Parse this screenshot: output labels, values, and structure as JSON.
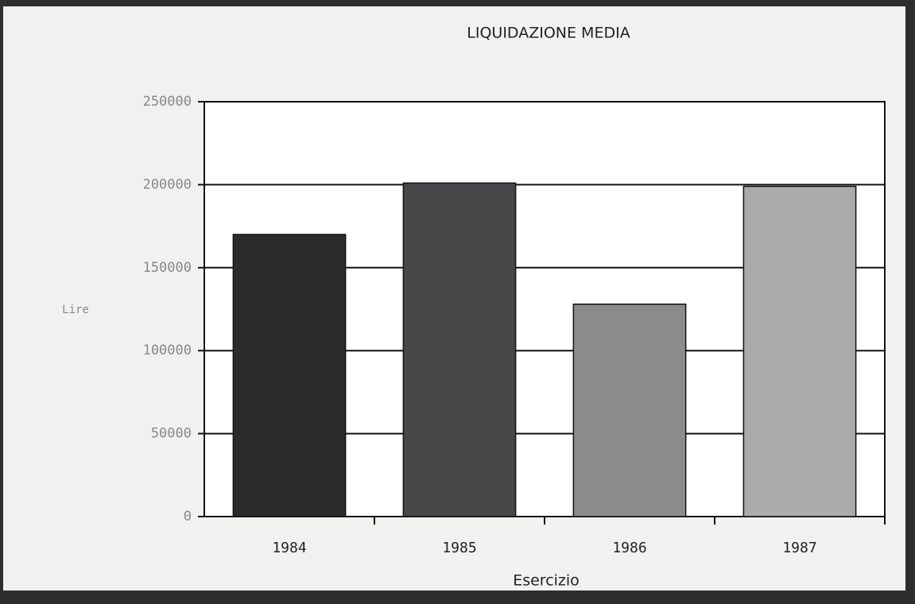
{
  "chart_data": {
    "type": "bar",
    "title": "LIQUIDAZIONE MEDIA",
    "y_label": "Lire",
    "x_label": "Esercizio",
    "categories": [
      "1984",
      "1985",
      "1986",
      "1987"
    ],
    "values": [
      170000,
      201000,
      128000,
      199000
    ],
    "colors": [
      "#2b2b2d",
      "#474749",
      "#8c8c8c",
      "#ababab"
    ],
    "ylim": [
      0,
      250000
    ],
    "yticks": [
      0,
      50000,
      100000,
      150000,
      200000,
      250000
    ],
    "grid": true
  }
}
